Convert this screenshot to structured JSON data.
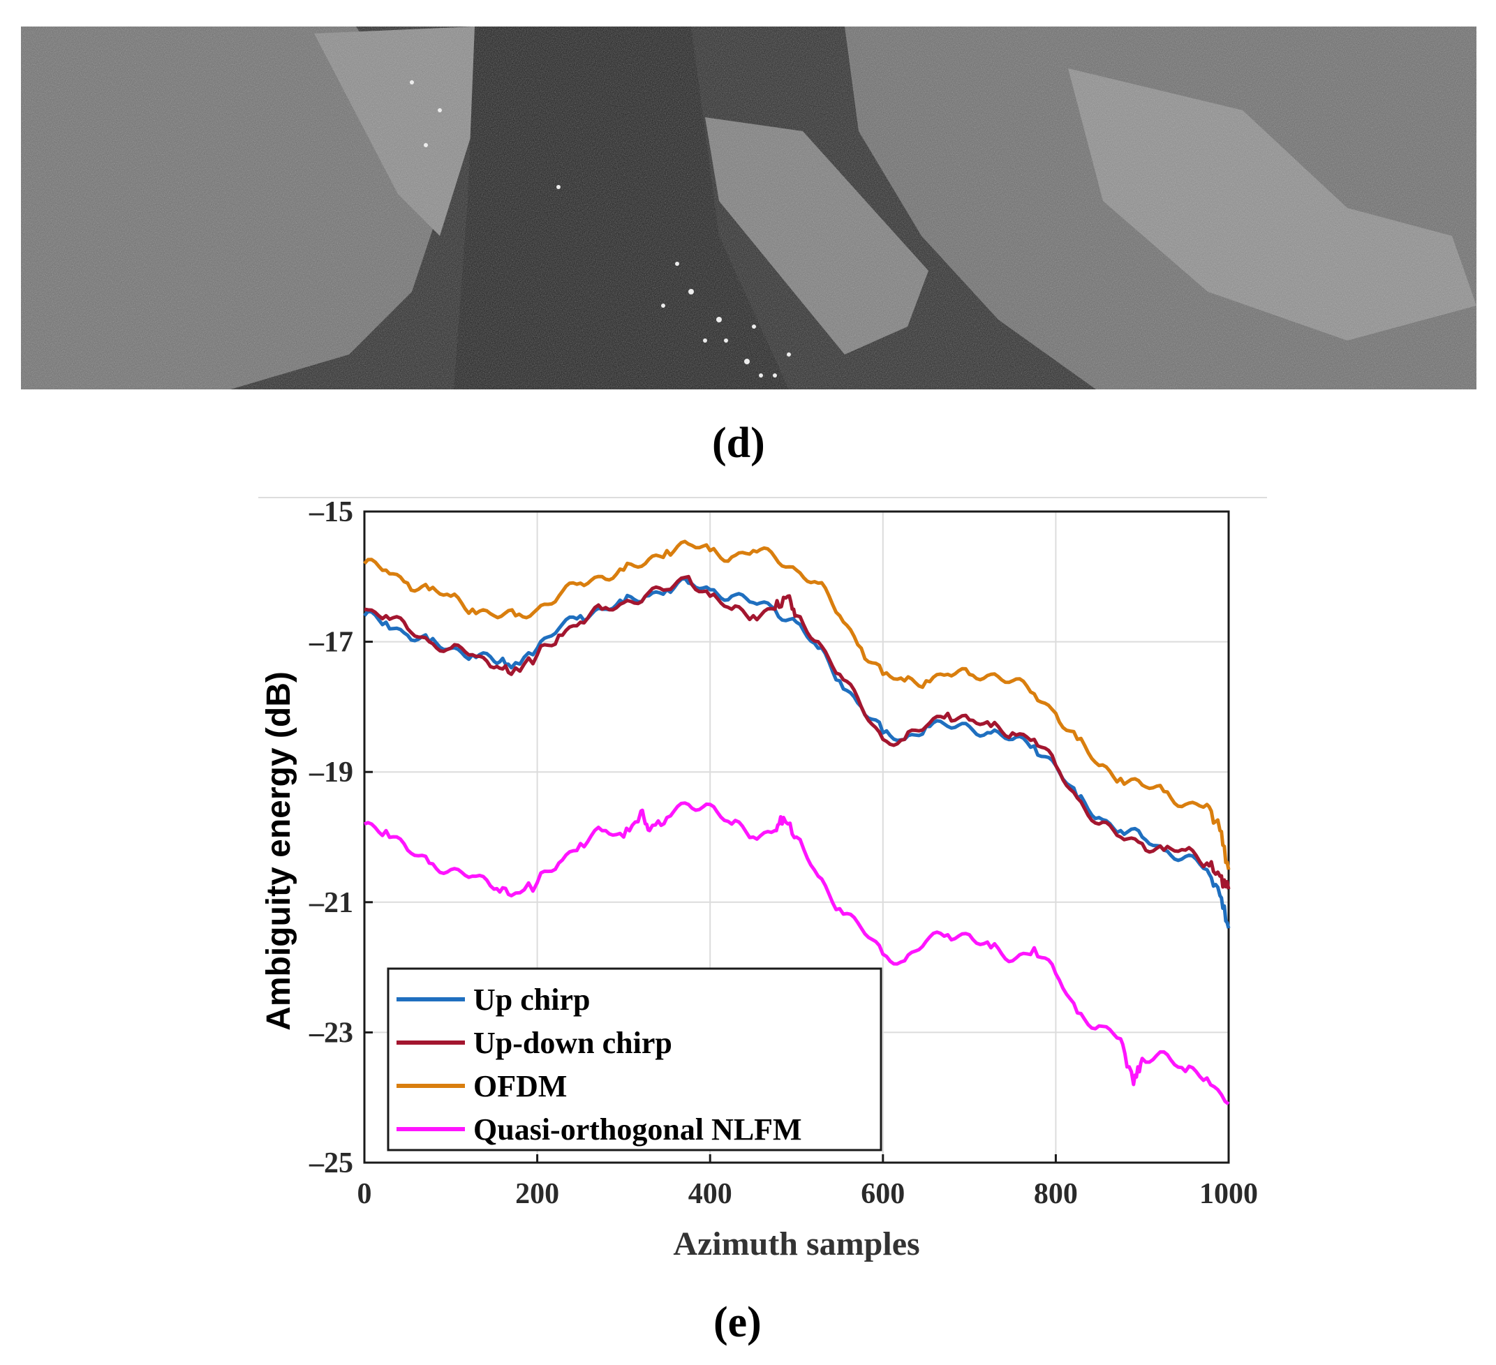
{
  "figure": {
    "caption_d": "(d)",
    "caption_e": "(e)",
    "sar_image_description_icon": "sar-image-icon"
  },
  "chart_data": {
    "type": "line",
    "xlabel": "Azimuth samples",
    "ylabel": "Ambiguity energy (dB)",
    "xlim": [
      0,
      1000
    ],
    "ylim": [
      -25,
      -15
    ],
    "xticks": [
      0,
      200,
      400,
      600,
      800,
      1000
    ],
    "xtick_labels": [
      "0",
      "200",
      "400",
      "600",
      "800",
      "1000"
    ],
    "yticks": [
      -15,
      -17,
      -19,
      -21,
      -23,
      -25
    ],
    "ytick_labels": [
      "–15",
      "–17",
      "–19",
      "–21",
      "–23",
      "–25"
    ],
    "grid": true,
    "legend_position": "bottom-left",
    "series": [
      {
        "name": "Up chirp",
        "color": "#1f6fbf",
        "x": [
          0,
          25,
          50,
          75,
          100,
          125,
          150,
          170,
          200,
          225,
          250,
          275,
          300,
          325,
          350,
          375,
          400,
          425,
          450,
          475,
          500,
          525,
          550,
          575,
          600,
          625,
          650,
          675,
          700,
          725,
          750,
          775,
          800,
          825,
          850,
          875,
          900,
          925,
          950,
          975,
          990,
          1000
        ],
        "y": [
          -16.6,
          -16.7,
          -16.9,
          -17.0,
          -17.1,
          -17.2,
          -17.3,
          -17.4,
          -17.1,
          -16.8,
          -16.6,
          -16.5,
          -16.4,
          -16.3,
          -16.2,
          -16.1,
          -16.2,
          -16.3,
          -16.4,
          -16.5,
          -16.7,
          -17.1,
          -17.6,
          -18.0,
          -18.4,
          -18.5,
          -18.3,
          -18.3,
          -18.3,
          -18.4,
          -18.5,
          -18.6,
          -18.9,
          -19.4,
          -19.7,
          -19.9,
          -20.0,
          -20.2,
          -20.3,
          -20.5,
          -20.9,
          -21.4
        ]
      },
      {
        "name": "Up-down chirp",
        "color": "#a3162f",
        "x": [
          0,
          25,
          50,
          75,
          100,
          125,
          150,
          170,
          200,
          225,
          250,
          275,
          300,
          325,
          350,
          375,
          400,
          425,
          450,
          475,
          490,
          500,
          525,
          550,
          575,
          600,
          625,
          650,
          675,
          700,
          725,
          750,
          775,
          800,
          825,
          850,
          875,
          900,
          925,
          950,
          975,
          990,
          1000
        ],
        "y": [
          -16.5,
          -16.6,
          -16.8,
          -17.0,
          -17.1,
          -17.2,
          -17.4,
          -17.5,
          -17.2,
          -16.9,
          -16.7,
          -16.5,
          -16.4,
          -16.3,
          -16.2,
          -16.0,
          -16.3,
          -16.5,
          -16.6,
          -16.5,
          -16.3,
          -16.6,
          -17.0,
          -17.5,
          -18.0,
          -18.5,
          -18.5,
          -18.3,
          -18.1,
          -18.2,
          -18.3,
          -18.4,
          -18.5,
          -18.9,
          -19.4,
          -19.8,
          -20.0,
          -20.1,
          -20.2,
          -20.2,
          -20.4,
          -20.6,
          -20.8
        ]
      },
      {
        "name": "OFDM",
        "color": "#d97e0e",
        "x": [
          0,
          25,
          50,
          75,
          100,
          125,
          150,
          175,
          200,
          225,
          250,
          275,
          300,
          325,
          350,
          375,
          400,
          425,
          450,
          475,
          500,
          525,
          550,
          575,
          600,
          625,
          650,
          675,
          700,
          725,
          750,
          775,
          800,
          825,
          850,
          875,
          900,
          925,
          950,
          975,
          990,
          1000
        ],
        "y": [
          -15.8,
          -15.9,
          -16.1,
          -16.2,
          -16.3,
          -16.5,
          -16.6,
          -16.6,
          -16.5,
          -16.3,
          -16.1,
          -16.0,
          -15.9,
          -15.8,
          -15.6,
          -15.5,
          -15.6,
          -15.7,
          -15.6,
          -15.7,
          -15.9,
          -16.1,
          -16.6,
          -17.1,
          -17.5,
          -17.6,
          -17.6,
          -17.5,
          -17.5,
          -17.5,
          -17.6,
          -17.8,
          -18.1,
          -18.5,
          -18.9,
          -19.1,
          -19.2,
          -19.3,
          -19.5,
          -19.5,
          -19.9,
          -20.5
        ]
      },
      {
        "name": "Quasi-orthogonal NLFM",
        "color": "#ff14ff",
        "x": [
          0,
          25,
          50,
          75,
          100,
          125,
          150,
          170,
          200,
          225,
          250,
          275,
          300,
          320,
          330,
          350,
          375,
          400,
          425,
          450,
          475,
          485,
          500,
          525,
          550,
          575,
          600,
          625,
          650,
          675,
          700,
          725,
          750,
          775,
          800,
          825,
          850,
          875,
          890,
          900,
          925,
          950,
          975,
          1000
        ],
        "y": [
          -19.8,
          -19.9,
          -20.2,
          -20.4,
          -20.5,
          -20.6,
          -20.8,
          -20.9,
          -20.7,
          -20.4,
          -20.1,
          -19.9,
          -20.0,
          -19.6,
          -19.9,
          -19.7,
          -19.5,
          -19.5,
          -19.8,
          -20.0,
          -19.9,
          -19.7,
          -20.0,
          -20.6,
          -21.1,
          -21.4,
          -21.8,
          -21.9,
          -21.6,
          -21.5,
          -21.5,
          -21.7,
          -21.9,
          -21.7,
          -22.1,
          -22.7,
          -22.9,
          -23.1,
          -23.8,
          -23.4,
          -23.3,
          -23.6,
          -23.7,
          -24.1
        ]
      }
    ]
  }
}
